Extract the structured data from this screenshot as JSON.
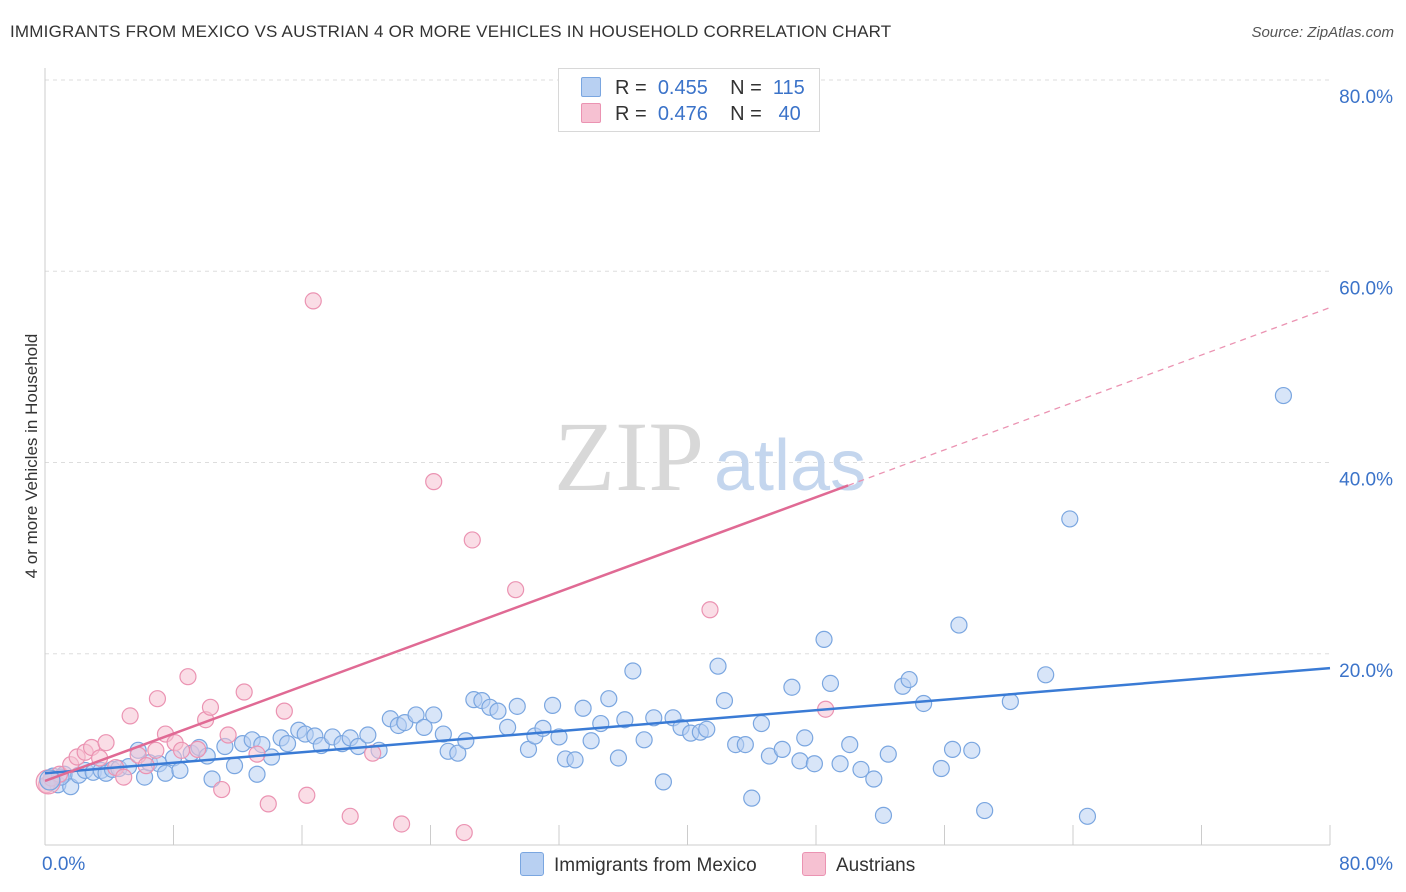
{
  "title": "IMMIGRANTS FROM MEXICO VS AUSTRIAN 4 OR MORE VEHICLES IN HOUSEHOLD CORRELATION CHART",
  "source": "Source: ZipAtlas.com",
  "watermark": "ZIPatlas",
  "colors": {
    "blue": "#4a86d8",
    "blue_fill": "#b8d0f2",
    "pink": "#e06a94",
    "pink_fill": "#f6c1d2",
    "axis_label": "#3b73c9",
    "grid": "#dddddd"
  },
  "legend_top": [
    {
      "r_label": "R =",
      "r_value": "0.455",
      "n_label": "N =",
      "n_value": "115"
    },
    {
      "r_label": "R =",
      "r_value": "0.476",
      "n_label": "N =",
      "n_value": "40"
    }
  ],
  "legend_bottom": [
    "Immigrants from Mexico",
    "Austrians"
  ],
  "chart_data": {
    "type": "scatter",
    "ylabel": "4 or more Vehicles in Household",
    "xlim": [
      0,
      80
    ],
    "ylim": [
      0,
      80
    ],
    "x_tick_labels": [
      "0.0%",
      "80.0%"
    ],
    "y_tick_labels": [
      "20.0%",
      "40.0%",
      "60.0%",
      "80.0%"
    ],
    "y_ticks": [
      20,
      40,
      60,
      80
    ],
    "grid": true,
    "legend": "top-center",
    "series": [
      {
        "name": "Immigrants from Mexico",
        "color": "#4a86d8",
        "trend": {
          "x0": 0,
          "y0": 7.5,
          "x1": 80,
          "y1": 18.5,
          "dashed_from": null
        },
        "points": [
          [
            0.3,
            6.6
          ],
          [
            0.5,
            7.2
          ],
          [
            0.8,
            6.3
          ],
          [
            1.2,
            7.4
          ],
          [
            1.6,
            6.1
          ],
          [
            2.1,
            7.3
          ],
          [
            2.5,
            7.8
          ],
          [
            3.0,
            7.6
          ],
          [
            3.5,
            7.8
          ],
          [
            3.8,
            7.5
          ],
          [
            4.2,
            7.9
          ],
          [
            4.6,
            8.0
          ],
          [
            5.2,
            8.2
          ],
          [
            5.8,
            9.9
          ],
          [
            6.2,
            7.1
          ],
          [
            6.5,
            8.6
          ],
          [
            7.1,
            8.5
          ],
          [
            7.5,
            7.5
          ],
          [
            8.0,
            9.1
          ],
          [
            8.4,
            7.8
          ],
          [
            9.1,
            9.6
          ],
          [
            9.6,
            10.2
          ],
          [
            10.1,
            9.3
          ],
          [
            10.4,
            6.9
          ],
          [
            11.2,
            10.3
          ],
          [
            11.8,
            8.3
          ],
          [
            12.3,
            10.6
          ],
          [
            12.9,
            11.0
          ],
          [
            13.5,
            10.5
          ],
          [
            13.2,
            7.4
          ],
          [
            14.1,
            9.2
          ],
          [
            14.7,
            11.2
          ],
          [
            15.1,
            10.6
          ],
          [
            15.8,
            12.0
          ],
          [
            16.2,
            11.6
          ],
          [
            16.8,
            11.4
          ],
          [
            17.2,
            10.4
          ],
          [
            17.9,
            11.3
          ],
          [
            18.5,
            10.6
          ],
          [
            19.0,
            11.2
          ],
          [
            19.5,
            10.3
          ],
          [
            20.1,
            11.5
          ],
          [
            20.8,
            9.9
          ],
          [
            21.5,
            13.2
          ],
          [
            22.0,
            12.5
          ],
          [
            22.4,
            12.8
          ],
          [
            23.1,
            13.6
          ],
          [
            23.6,
            12.3
          ],
          [
            24.2,
            13.6
          ],
          [
            24.8,
            11.6
          ],
          [
            25.1,
            9.8
          ],
          [
            25.7,
            9.6
          ],
          [
            26.2,
            10.9
          ],
          [
            26.7,
            15.2
          ],
          [
            27.2,
            15.1
          ],
          [
            27.7,
            14.4
          ],
          [
            28.2,
            14.0
          ],
          [
            28.8,
            12.3
          ],
          [
            29.4,
            14.5
          ],
          [
            30.1,
            10.0
          ],
          [
            30.5,
            11.4
          ],
          [
            31.0,
            12.2
          ],
          [
            31.6,
            14.6
          ],
          [
            32.0,
            11.3
          ],
          [
            32.4,
            9.0
          ],
          [
            33.0,
            8.9
          ],
          [
            33.5,
            14.3
          ],
          [
            34.0,
            10.9
          ],
          [
            34.6,
            12.7
          ],
          [
            35.1,
            15.3
          ],
          [
            35.7,
            9.1
          ],
          [
            36.1,
            13.1
          ],
          [
            36.6,
            18.2
          ],
          [
            37.3,
            11.0
          ],
          [
            37.9,
            13.3
          ],
          [
            38.5,
            6.6
          ],
          [
            39.1,
            13.3
          ],
          [
            39.6,
            12.3
          ],
          [
            40.2,
            11.7
          ],
          [
            40.8,
            11.8
          ],
          [
            41.2,
            12.1
          ],
          [
            41.9,
            18.7
          ],
          [
            42.3,
            15.1
          ],
          [
            43.0,
            10.5
          ],
          [
            43.6,
            10.5
          ],
          [
            44.0,
            4.9
          ],
          [
            44.6,
            12.7
          ],
          [
            45.1,
            9.3
          ],
          [
            45.9,
            10.0
          ],
          [
            46.5,
            16.5
          ],
          [
            47.0,
            8.8
          ],
          [
            47.3,
            11.2
          ],
          [
            47.9,
            8.5
          ],
          [
            48.5,
            21.5
          ],
          [
            48.9,
            16.9
          ],
          [
            49.5,
            8.5
          ],
          [
            50.1,
            10.5
          ],
          [
            50.8,
            7.9
          ],
          [
            51.6,
            6.9
          ],
          [
            52.2,
            3.1
          ],
          [
            52.5,
            9.5
          ],
          [
            53.4,
            16.6
          ],
          [
            53.8,
            17.3
          ],
          [
            54.7,
            14.8
          ],
          [
            55.8,
            8.0
          ],
          [
            56.5,
            10.0
          ],
          [
            56.9,
            23.0
          ],
          [
            57.7,
            9.9
          ],
          [
            58.5,
            3.6
          ],
          [
            60.1,
            15.0
          ],
          [
            62.3,
            17.8
          ],
          [
            63.8,
            34.1
          ],
          [
            64.9,
            3.0
          ],
          [
            77.1,
            47.0
          ],
          [
            1.0,
            7.1
          ]
        ]
      },
      {
        "name": "Austrians",
        "color": "#e06a94",
        "trend": {
          "x0": 0,
          "y0": 6.7,
          "x1": 50,
          "y1": 37.6,
          "dash_x1": 80,
          "dash_y1": 56.2
        },
        "points": [
          [
            0.1,
            6.3
          ],
          [
            0.4,
            7.0
          ],
          [
            0.9,
            7.4
          ],
          [
            1.6,
            8.4
          ],
          [
            2.0,
            9.2
          ],
          [
            2.5,
            9.7
          ],
          [
            2.9,
            10.2
          ],
          [
            3.4,
            9.1
          ],
          [
            3.8,
            10.7
          ],
          [
            4.4,
            8.1
          ],
          [
            4.9,
            7.1
          ],
          [
            5.3,
            13.5
          ],
          [
            5.8,
            9.4
          ],
          [
            6.3,
            8.3
          ],
          [
            6.9,
            9.9
          ],
          [
            7.0,
            15.3
          ],
          [
            7.5,
            11.6
          ],
          [
            8.1,
            10.7
          ],
          [
            8.5,
            9.9
          ],
          [
            8.9,
            17.6
          ],
          [
            9.5,
            10.0
          ],
          [
            10.0,
            13.1
          ],
          [
            10.3,
            14.4
          ],
          [
            11.0,
            5.8
          ],
          [
            11.4,
            11.5
          ],
          [
            12.4,
            16.0
          ],
          [
            13.2,
            9.5
          ],
          [
            13.9,
            4.3
          ],
          [
            14.9,
            14.0
          ],
          [
            16.3,
            5.2
          ],
          [
            16.7,
            56.9
          ],
          [
            19.0,
            3.0
          ],
          [
            20.4,
            9.6
          ],
          [
            22.2,
            2.2
          ],
          [
            24.2,
            38.0
          ],
          [
            26.1,
            1.3
          ],
          [
            26.6,
            31.9
          ],
          [
            29.3,
            26.7
          ],
          [
            41.4,
            24.6
          ],
          [
            48.6,
            14.2
          ]
        ]
      }
    ]
  }
}
